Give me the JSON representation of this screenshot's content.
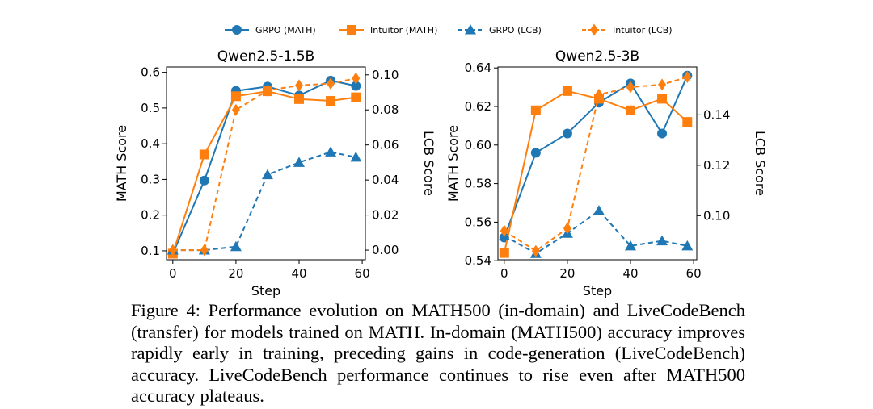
{
  "legend": {
    "items": [
      {
        "label": "GRPO (MATH)",
        "color": "#1f77b4",
        "marker": "circle",
        "dashed": false
      },
      {
        "label": "Intuitor (MATH)",
        "color": "#ff7f0e",
        "marker": "square",
        "dashed": false
      },
      {
        "label": "GRPO (LCB)",
        "color": "#1f77b4",
        "marker": "triangle",
        "dashed": true
      },
      {
        "label": "Intuitor (LCB)",
        "color": "#ff7f0e",
        "marker": "diamond",
        "dashed": true
      }
    ],
    "placement": "top-center"
  },
  "chart_data": [
    {
      "type": "line",
      "title": "Qwen2.5-1.5B",
      "xlabel": "Step",
      "ylabel": "MATH Score",
      "y2label": "LCB Score",
      "xlim": [
        -2,
        61
      ],
      "ylim": [
        0.075,
        0.615
      ],
      "y2lim": [
        -0.0055,
        0.1045
      ],
      "xticks": [
        "0",
        "20",
        "40",
        "60"
      ],
      "yticks": [
        "0.1",
        "0.2",
        "0.3",
        "0.4",
        "0.5",
        "0.6"
      ],
      "y2ticks": [
        "0.00",
        "0.02",
        "0.04",
        "0.06",
        "0.08",
        "0.10"
      ],
      "grid": false,
      "x": [
        0,
        10,
        20,
        30,
        40,
        50,
        58
      ],
      "series": [
        {
          "name": "GRPO (MATH)",
          "axis": "left",
          "values": [
            0.092,
            0.297,
            0.548,
            0.56,
            0.535,
            0.577,
            0.562
          ]
        },
        {
          "name": "Intuitor (MATH)",
          "axis": "left",
          "values": [
            0.092,
            0.37,
            0.533,
            0.547,
            0.525,
            0.52,
            0.53
          ]
        },
        {
          "name": "GRPO (LCB)",
          "axis": "right",
          "values": [
            0.0,
            0.0,
            0.002,
            0.043,
            0.05,
            0.056,
            0.053
          ]
        },
        {
          "name": "Intuitor (LCB)",
          "axis": "right",
          "values": [
            0.0,
            0.0,
            0.08,
            0.091,
            0.094,
            0.095,
            0.098
          ]
        }
      ]
    },
    {
      "type": "line",
      "title": "Qwen2.5-3B",
      "xlabel": "Step",
      "ylabel": "MATH Score",
      "y2label": "LCB Score",
      "xlim": [
        -2,
        61
      ],
      "ylim": [
        0.5405,
        0.6405
      ],
      "y2lim": [
        0.0825,
        0.159
      ],
      "xticks": [
        "0",
        "20",
        "40",
        "60"
      ],
      "yticks": [
        "0.54",
        "0.56",
        "0.58",
        "0.60",
        "0.62",
        "0.64"
      ],
      "y2ticks": [
        "0.10",
        "0.12",
        "0.14"
      ],
      "grid": false,
      "x": [
        0,
        10,
        20,
        30,
        40,
        50,
        58
      ],
      "series": [
        {
          "name": "GRPO (MATH)",
          "axis": "left",
          "values": [
            0.552,
            0.596,
            0.606,
            0.622,
            0.632,
            0.606,
            0.636
          ]
        },
        {
          "name": "Intuitor (MATH)",
          "axis": "left",
          "values": [
            0.544,
            0.618,
            0.628,
            0.624,
            0.618,
            0.624,
            0.612
          ]
        },
        {
          "name": "GRPO (LCB)",
          "axis": "right",
          "values": [
            0.092,
            0.085,
            0.093,
            0.102,
            0.088,
            0.09,
            0.088
          ]
        },
        {
          "name": "Intuitor (LCB)",
          "axis": "right",
          "values": [
            0.094,
            0.086,
            0.095,
            0.148,
            0.151,
            0.152,
            0.155
          ]
        }
      ]
    }
  ],
  "caption": "Figure 4: Performance evolution on MATH500 (in-domain) and LiveCodeBench (transfer) for models trained on MATH. In-domain (MATH500) accuracy improves rapidly early in training, preceding gains in code-generation (LiveCodeBench) accuracy. LiveCodeBench performance continues to rise even after MATH500 accuracy plateaus."
}
